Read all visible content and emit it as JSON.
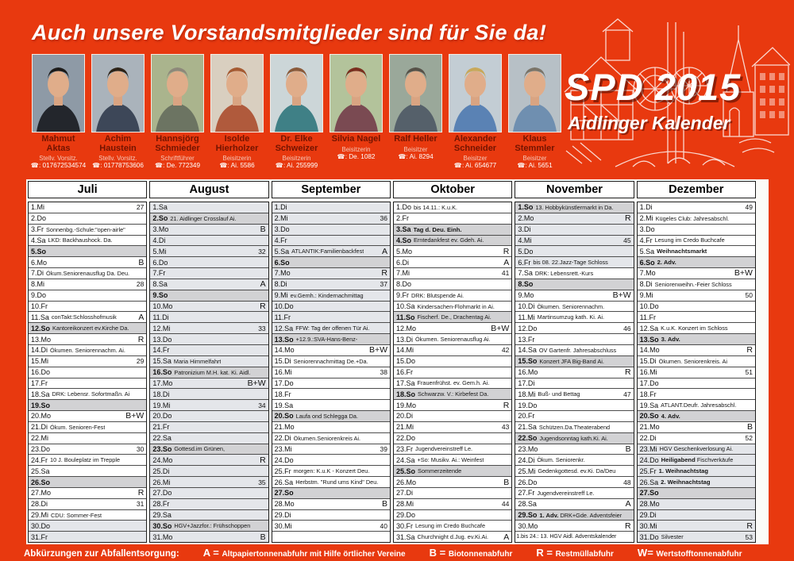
{
  "headline": "Auch unsere Vorstandsmitglieder sind für Sie da!",
  "logo": {
    "title": "SPD 2015",
    "subtitle": "Aidlinger Kalender"
  },
  "colors": {
    "poster_red": "#e8390f",
    "name_maroon": "#731400",
    "sunday_grey": "#d2d2d4",
    "school_holiday_grey": "#e4e6ea"
  },
  "members": [
    {
      "name": "Mahmut Aktas",
      "role": "Stellv. Vorsitz.",
      "phone": "☎: 017672534574",
      "photo": {
        "bg": "#8e9aa6",
        "shirt": "#23262c",
        "hair": "#1c1b1a"
      }
    },
    {
      "name": "Achim Haustein",
      "role": "Stellv. Vorsitz.",
      "phone": "☎: 01778753606",
      "photo": {
        "bg": "#aab3bb",
        "shirt": "#3d4758",
        "hair": "#2d2318"
      }
    },
    {
      "name": "Hannsjörg Schmieder",
      "role": "Schriftführer",
      "phone": "☎: De. 772349",
      "photo": {
        "bg": "#aab48d",
        "shirt": "#6c7462",
        "hair": "#8d887a"
      }
    },
    {
      "name": "Isolde Hierholzer",
      "role": "Beisitzerin",
      "phone": "☎: Ai. 5586",
      "photo": {
        "bg": "#d9cfc0",
        "shirt": "#b05a3c",
        "hair": "#a55a32"
      }
    },
    {
      "name": "Dr. Elke Schweizer",
      "role": "Beisitzerin",
      "phone": "☎: Ai. 255999",
      "photo": {
        "bg": "#ccd6d8",
        "shirt": "#3f8086",
        "hair": "#8a5a3a"
      }
    },
    {
      "name": "Silvia Nagel",
      "role": "Beisitzerin",
      "phone": "☎: De. 1082",
      "photo": {
        "bg": "#b3c39b",
        "shirt": "#7a4a52",
        "hair": "#7a2e1e"
      }
    },
    {
      "name": "Ralf Heller",
      "role": "Beisitzer",
      "phone": "☎: Ai. 8294",
      "photo": {
        "bg": "#9aa89a",
        "shirt": "#55606a",
        "hair": "#565148"
      }
    },
    {
      "name": "Alexander Schneider",
      "role": "Beisitzer",
      "phone": "☎: Ai. 654677",
      "photo": {
        "bg": "#c3cdd4",
        "shirt": "#5a82b4",
        "hair": "#c8a85a"
      }
    },
    {
      "name": "Klaus Stemmler",
      "role": "Beisitzer",
      "phone": "☎: Ai. 5651",
      "photo": {
        "bg": "#b7c0c6",
        "shirt": "#6f8fb0",
        "hair": "#7a7468"
      }
    }
  ],
  "calendar": {
    "months": [
      {
        "name": "Juli",
        "days": [
          {
            "d": "1.Mi",
            "w": "27"
          },
          {
            "d": "2.Do"
          },
          {
            "d": "3.Fr",
            "t": "Sonnenbg.-Schule:\"open-airle\""
          },
          {
            "d": "4.Sa",
            "t": "LKD: Backhaushock. Da."
          },
          {
            "d": "5.So",
            "sun": true
          },
          {
            "d": "6.Mo",
            "c": "B"
          },
          {
            "d": "7.Di",
            "t": "Ökum.Seniorenausflug Da. Deu."
          },
          {
            "d": "8.Mi",
            "w": "28"
          },
          {
            "d": "9.Do"
          },
          {
            "d": "10.Fr"
          },
          {
            "d": "11.Sa",
            "t": "conTakt:Schlosshofmusik",
            "c": "A"
          },
          {
            "d": "12.So",
            "sun": true,
            "t": "Kantoreikonzert ev.Kirche Da."
          },
          {
            "d": "13.Mo",
            "c": "R"
          },
          {
            "d": "14.Di",
            "t": "Ökumen. Seniorennachm. Ai."
          },
          {
            "d": "15.Mi",
            "w": "29"
          },
          {
            "d": "16.Do"
          },
          {
            "d": "17.Fr"
          },
          {
            "d": "18.Sa",
            "t": "DRK: Lebensr. Sofortmaßn. Ai"
          },
          {
            "d": "19.So",
            "sun": true
          },
          {
            "d": "20.Mo",
            "c": "B+W"
          },
          {
            "d": "21.Di",
            "t": "Ökum. Senioren-Fest"
          },
          {
            "d": "22.Mi"
          },
          {
            "d": "23.Do",
            "w": "30"
          },
          {
            "d": "24.Fr",
            "t": "10 J. Bouleplatz im Trepple"
          },
          {
            "d": "25.Sa"
          },
          {
            "d": "26.So",
            "sun": true
          },
          {
            "d": "27.Mo",
            "c": "R"
          },
          {
            "d": "28.Di",
            "w": "31"
          },
          {
            "d": "29.Mi",
            "t": "CDU: Sommer-Fest"
          },
          {
            "d": "30.Do",
            "hol": true
          },
          {
            "d": "31.Fr",
            "hol": true
          }
        ]
      },
      {
        "name": "August",
        "days": [
          {
            "d": "1.Sa",
            "hol": true
          },
          {
            "d": "2.So",
            "sun": true,
            "t": "21. Aidlinger Crosslauf  Ai."
          },
          {
            "d": "3.Mo",
            "hol": true,
            "c": "B"
          },
          {
            "d": "4.Di",
            "hol": true
          },
          {
            "d": "5.Mi",
            "hol": true,
            "w": "32"
          },
          {
            "d": "6.Do",
            "hol": true
          },
          {
            "d": "7.Fr",
            "hol": true
          },
          {
            "d": "8.Sa",
            "hol": true,
            "c": "A"
          },
          {
            "d": "9.So",
            "sun": true
          },
          {
            "d": "10.Mo",
            "hol": true,
            "c": "R"
          },
          {
            "d": "11.Di",
            "hol": true
          },
          {
            "d": "12.Mi",
            "hol": true,
            "w": "33"
          },
          {
            "d": "13.Do",
            "hol": true
          },
          {
            "d": "14.Fr",
            "hol": true
          },
          {
            "d": "15.Sa",
            "hol": true,
            "t": "Maria Himmelfahrt"
          },
          {
            "d": "16.So",
            "sun": true,
            "t": "Patronizium M.H. kat. Ki. Aidl."
          },
          {
            "d": "17.Mo",
            "hol": true,
            "c": "B+W"
          },
          {
            "d": "18.Di",
            "hol": true
          },
          {
            "d": "19.Mi",
            "hol": true,
            "w": "34"
          },
          {
            "d": "20.Do",
            "hol": true
          },
          {
            "d": "21.Fr",
            "hol": true
          },
          {
            "d": "22.Sa",
            "hol": true
          },
          {
            "d": "23.So",
            "sun": true,
            "t": "Gottesd.im Grünen,"
          },
          {
            "d": "24.Mo",
            "hol": true,
            "c": "R"
          },
          {
            "d": "25.Di",
            "hol": true
          },
          {
            "d": "26.Mi",
            "hol": true,
            "w": "35"
          },
          {
            "d": "27.Do",
            "hol": true
          },
          {
            "d": "28.Fr",
            "hol": true
          },
          {
            "d": "29.Sa",
            "hol": true
          },
          {
            "d": "30.So",
            "sun": true,
            "t": "HGV+Jazzfor.: Frühschoppen"
          },
          {
            "d": "31.Mo",
            "hol": true,
            "c": "B"
          }
        ]
      },
      {
        "name": "September",
        "days": [
          {
            "d": "1.Di",
            "hol": true
          },
          {
            "d": "2.Mi",
            "hol": true,
            "w": "36"
          },
          {
            "d": "3.Do",
            "hol": true
          },
          {
            "d": "4.Fr",
            "hol": true
          },
          {
            "d": "5.Sa",
            "hol": true,
            "t": "ATLANTIK:Familienbackfest",
            "c": "A"
          },
          {
            "d": "6.So",
            "sun": true
          },
          {
            "d": "7.Mo",
            "hol": true,
            "c": "R"
          },
          {
            "d": "8.Di",
            "hol": true,
            "w": "37"
          },
          {
            "d": "9.Mi",
            "hol": true,
            "t": "ev.Gemh.: Kindernachmittag"
          },
          {
            "d": "10.Do",
            "hol": true
          },
          {
            "d": "11.Fr",
            "hol": true
          },
          {
            "d": "12.Sa",
            "hol": true,
            "t": "FFW: Tag der offenen Tür  Ai."
          },
          {
            "d": "13.So",
            "sun": true,
            "t": "+12.9.:SVA-Hans-Benz-"
          },
          {
            "d": "14.Mo",
            "c": "B+W"
          },
          {
            "d": "15.Di",
            "t": "Seniorennachmittag  De.+Da."
          },
          {
            "d": "16.Mi",
            "w": "38"
          },
          {
            "d": "17.Do"
          },
          {
            "d": "18.Fr"
          },
          {
            "d": "19.Sa"
          },
          {
            "d": "20.So",
            "sun": true,
            "t": "Laufa ond Schlegga Da."
          },
          {
            "d": "21.Mo"
          },
          {
            "d": "22.Di",
            "t": "Ökumen.Seniorenkreis Ai."
          },
          {
            "d": "23.Mi",
            "w": "39"
          },
          {
            "d": "24.Do"
          },
          {
            "d": "25.Fr",
            "t": "morgen: K.u.K - Konzert  Deu."
          },
          {
            "d": "26.Sa",
            "t": "Herbstm. \"Rund ums Kind\" Deu."
          },
          {
            "d": "27.So",
            "sun": true
          },
          {
            "d": "28.Mo",
            "c": "B"
          },
          {
            "d": "29.Di"
          },
          {
            "d": "30.Mi",
            "w": "40"
          },
          {
            "d": ""
          }
        ]
      },
      {
        "name": "Oktober",
        "days": [
          {
            "d": "1.Do",
            "t": "bis 14.11.: K.u.K."
          },
          {
            "d": "2.Fr"
          },
          {
            "d": "3.Sa",
            "sun": true,
            "tb": "Tag d. Deu. Einh."
          },
          {
            "d": "4.So",
            "sun": true,
            "t": "Erntedankfest ev. Gdeh. Ai."
          },
          {
            "d": "5.Mo",
            "c": "R"
          },
          {
            "d": "6.Di",
            "c": "A"
          },
          {
            "d": "7.Mi",
            "w": "41"
          },
          {
            "d": "8.Do"
          },
          {
            "d": "9.Fr",
            "t": "DRK: Blutspende  Ai."
          },
          {
            "d": "10.Sa",
            "t": "Kindersachen-Flohmarkt in Ai."
          },
          {
            "d": "11.So",
            "sun": true,
            "t": "Fischerf. De., Drachentag Ai."
          },
          {
            "d": "12.Mo",
            "c": "B+W"
          },
          {
            "d": "13.Di",
            "t": "Ökumen. Seniorenausflug Ai."
          },
          {
            "d": "14.Mi",
            "w": "42"
          },
          {
            "d": "15.Do"
          },
          {
            "d": "16.Fr"
          },
          {
            "d": "17.Sa",
            "t": "Frauenfrühst. ev. Gem.h. Ai."
          },
          {
            "d": "18.So",
            "sun": true,
            "t": "Schwarzw. V.: Kirbefest Da."
          },
          {
            "d": "19.Mo",
            "c": "R"
          },
          {
            "d": "20.Di"
          },
          {
            "d": "21.Mi",
            "w": "43"
          },
          {
            "d": "22.Do"
          },
          {
            "d": "23.Fr",
            "t": "Jugendvereinstreff   Le."
          },
          {
            "d": "24.Sa",
            "t": "+So: Musikv. Ai.: Weinfest"
          },
          {
            "d": "25.So",
            "sun": true,
            "t": "Sommerzeitende"
          },
          {
            "d": "26.Mo",
            "c": "B"
          },
          {
            "d": "27.Di"
          },
          {
            "d": "28.Mi",
            "w": "44"
          },
          {
            "d": "29.Do"
          },
          {
            "d": "30.Fr",
            "t": "Lesung im Credo Buchcafe"
          },
          {
            "d": "31.Sa",
            "t": "Churchnight d.Jug. ev.Ki.Ai.",
            "c": "A"
          }
        ]
      },
      {
        "name": "November",
        "days": [
          {
            "d": "1.So",
            "sun": true,
            "t": "13. Hobbykünstlermarkt in Da."
          },
          {
            "d": "2.Mo",
            "hol": true,
            "c": "R"
          },
          {
            "d": "3.Di",
            "hol": true
          },
          {
            "d": "4.Mi",
            "hol": true,
            "w": "45"
          },
          {
            "d": "5.Do",
            "hol": true
          },
          {
            "d": "6.Fr",
            "hol": true,
            "t": "bis 08. 22.Jazz-Tage Schloss"
          },
          {
            "d": "7.Sa",
            "t": "DRK: Lebensrett.-Kurs"
          },
          {
            "d": "8.So",
            "sun": true
          },
          {
            "d": "9.Mo",
            "c": "B+W"
          },
          {
            "d": "10.Di",
            "t": "Ökumen. Seniorennachm."
          },
          {
            "d": "11.Mi",
            "t": "Martinsumzug  kath. Ki. Ai."
          },
          {
            "d": "12.Do",
            "w": "46"
          },
          {
            "d": "13.Fr"
          },
          {
            "d": "14.Sa",
            "t": "OV Gartenfr. Jahresabschluss"
          },
          {
            "d": "15.So",
            "sun": true,
            "t": "Konzert JFA Big-Band Ai."
          },
          {
            "d": "16.Mo",
            "c": "R"
          },
          {
            "d": "17.Di"
          },
          {
            "d": "18.Mi",
            "t": "Buß- und Bettag",
            "w": "47"
          },
          {
            "d": "19.Do"
          },
          {
            "d": "20.Fr"
          },
          {
            "d": "21.Sa",
            "t": "Schützen.Da.Theaterabend"
          },
          {
            "d": "22.So",
            "sun": true,
            "t": "Jugendsonntag kath.Ki. Ai."
          },
          {
            "d": "23.Mo",
            "c": "B"
          },
          {
            "d": "24.Di",
            "t": "Ökum. Seniorenkr."
          },
          {
            "d": "25.Mi",
            "t": "Gedenkgottesd. ev.Ki. Da/Deu"
          },
          {
            "d": "26.Do",
            "w": "48"
          },
          {
            "d": "27.Fr",
            "t": "Jugendvereinstreff    Le."
          },
          {
            "d": "28.Sa",
            "c": "A"
          },
          {
            "d": "29.So",
            "sun": true,
            "tb": "1. Adv.",
            "t": "DRK+Gde. Adventsfeier"
          },
          {
            "d": "30.Mo",
            "c": "R"
          },
          {
            "note": "1.bis 24.: 13. HGV Aidl. Adventskalender"
          }
        ]
      },
      {
        "name": "Dezember",
        "days": [
          {
            "d": "1.Di",
            "w": "49"
          },
          {
            "d": "2.Mi",
            "t": "Kügeles Club: Jahresabschl."
          },
          {
            "d": "3.Do"
          },
          {
            "d": "4.Fr",
            "t": "Lesung im Credo Buchcafe"
          },
          {
            "d": "5.Sa",
            "tb": "Weihnachtsmarkt"
          },
          {
            "d": "6.So",
            "sun": true,
            "tb": "2. Adv."
          },
          {
            "d": "7.Mo",
            "c": "B+W"
          },
          {
            "d": "8.Di",
            "t": "Seniorenweihn.-Feier Schloss"
          },
          {
            "d": "9.Mi",
            "w": "50"
          },
          {
            "d": "10.Do"
          },
          {
            "d": "11.Fr"
          },
          {
            "d": "12.Sa",
            "t": "K.u.K. Konzert im Schloss"
          },
          {
            "d": "13.So",
            "sun": true,
            "tb": "3. Adv."
          },
          {
            "d": "14.Mo",
            "c": "R"
          },
          {
            "d": "15.Di",
            "t": "Ökumen. Seniorenkreis. Ai"
          },
          {
            "d": "16.Mi",
            "w": "51"
          },
          {
            "d": "17.Do"
          },
          {
            "d": "18.Fr"
          },
          {
            "d": "19.Sa",
            "t": "ATLANT.Deufr. Jahresabschl."
          },
          {
            "d": "20.So",
            "sun": true,
            "tb": "4. Adv."
          },
          {
            "d": "21.Mo",
            "c": "B"
          },
          {
            "d": "22.Di",
            "w": "52"
          },
          {
            "d": "23.Mi",
            "hol": true,
            "t": "HGV Geschenkverlosung Ai."
          },
          {
            "d": "24.Do",
            "hol": true,
            "tb": "Heiligabend",
            "t": "Fischverkäufe"
          },
          {
            "d": "25.Fr",
            "hol": true,
            "tb": "1. Weihnachtstag"
          },
          {
            "d": "26.Sa",
            "hol": true,
            "tb": "2. Weihnachtstag"
          },
          {
            "d": "27.So",
            "sun": true
          },
          {
            "d": "28.Mo",
            "hol": true
          },
          {
            "d": "29.Di",
            "hol": true
          },
          {
            "d": "30.Mi",
            "hol": true,
            "c": "R"
          },
          {
            "d": "31.Do",
            "hol": true,
            "t": "Silvester",
            "w": "53"
          }
        ]
      }
    ]
  },
  "footer": {
    "intro": "Abkürzungen zur Abfallentsorgung:",
    "items": [
      {
        "key": "A =",
        "text": "Altpapiertonnenabfuhr mit Hilfe örtlicher Vereine"
      },
      {
        "key": "B =",
        "text": "Biotonnenabfuhr"
      },
      {
        "key": "R =",
        "text": "Restmüllabfuhr"
      },
      {
        "key": "W=",
        "text": "Wertstofftonnenabfuhr"
      }
    ]
  }
}
